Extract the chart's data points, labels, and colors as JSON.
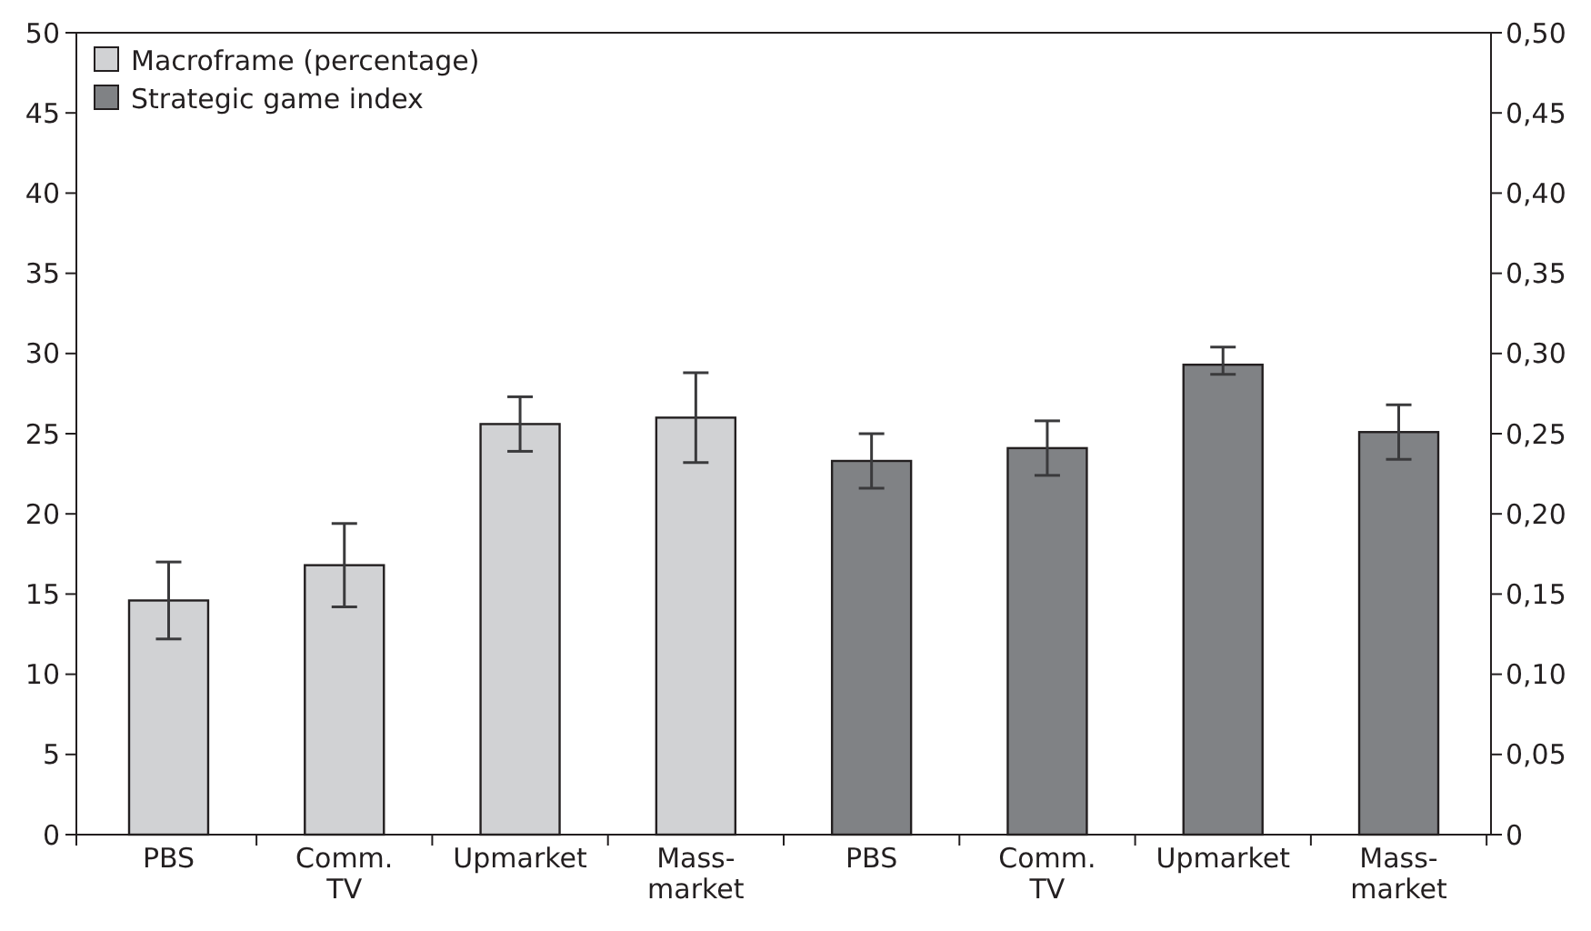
{
  "chart_data": {
    "type": "bar",
    "categories": [
      "PBS",
      "Comm. TV",
      "Upmarket",
      "Mass-market",
      "PBS",
      "Comm. TV",
      "Upmarket",
      "Mass-market"
    ],
    "series": [
      {
        "name": "Macroframe (percentage)",
        "color": "#d1d2d4",
        "values": [
          14.6,
          16.8,
          25.6,
          26.0,
          null,
          null,
          null,
          null
        ],
        "errors": [
          2.4,
          2.6,
          1.7,
          2.8,
          null,
          null,
          null,
          null
        ]
      },
      {
        "name": "Strategic game index",
        "color": "#808285",
        "axis": "y2",
        "values": [
          null,
          null,
          null,
          null,
          0.233,
          0.241,
          0.293,
          0.251
        ],
        "errors": [
          null,
          null,
          null,
          null,
          0.017,
          0.017,
          [
            0.287,
            0.304
          ],
          0.017
        ]
      }
    ],
    "ylim": [
      0,
      50
    ],
    "yticks": [
      0,
      5,
      10,
      15,
      20,
      25,
      30,
      35,
      40,
      45,
      50
    ],
    "y2lim": [
      0,
      0.5
    ],
    "y2ticks": [
      0,
      {
        "value": 0.05,
        "label": "0,05"
      },
      {
        "value": 0.1,
        "label": "0,10"
      },
      {
        "value": 0.15,
        "label": "0,15"
      },
      {
        "value": 0.2,
        "label": "0,20"
      },
      {
        "value": 0.25,
        "label": "0,25"
      },
      {
        "value": 0.3,
        "label": "0,30"
      },
      {
        "value": 0.35,
        "label": "0,35"
      },
      {
        "value": 0.4,
        "label": "0,40"
      },
      {
        "value": 0.45,
        "label": "0,45"
      },
      {
        "value": 0.5,
        "label": "0,50"
      }
    ],
    "legend": "top left",
    "grid": false
  }
}
